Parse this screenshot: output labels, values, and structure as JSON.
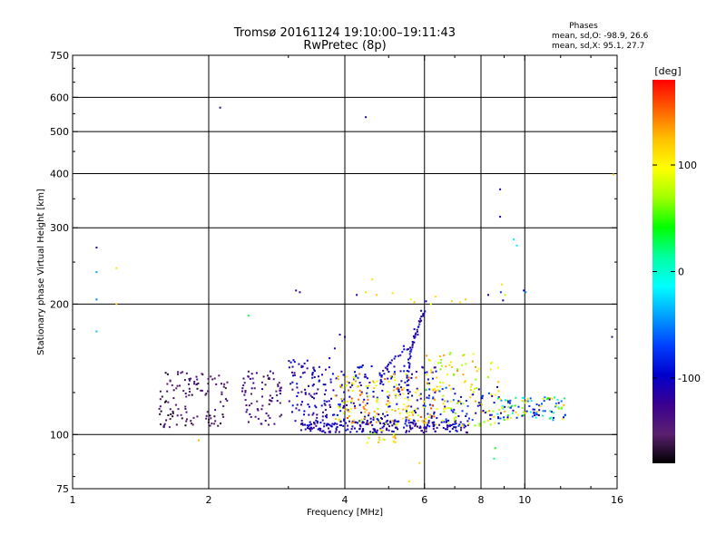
{
  "chart_data": {
    "type": "scatter",
    "title": "Tromsø 20161124 19:10:00–19:11:43",
    "subtitle": "RwPretec (8p)",
    "xlabel": "Frequency [MHz]",
    "ylabel": "Stationary phase Virtual Height [km]",
    "xscale": "log",
    "yscale": "log",
    "xlim": [
      1,
      16
    ],
    "ylim": [
      75,
      750
    ],
    "xticks": [
      "1",
      "2",
      "4",
      "6",
      "8",
      "10",
      "16"
    ],
    "yticks": [
      "75",
      "100",
      "200",
      "300",
      "400",
      "500",
      "600",
      "750"
    ],
    "xgrid": [
      2,
      4,
      6,
      8,
      10
    ],
    "ygrid": [
      100,
      200,
      300,
      400,
      500,
      600
    ],
    "phases_header": "Phases",
    "stats": [
      "mean, sd,O: -98.9, 26.6",
      "mean, sd,X: 95.1, 27.7"
    ],
    "colorbar": {
      "label": "[deg]",
      "range": [
        -180,
        180
      ],
      "ticks": [
        "100",
        "0",
        "-100"
      ],
      "tick_values": [
        100,
        0,
        -100
      ]
    },
    "points": [
      [
        1.13,
        270,
        -110
      ],
      [
        1.13,
        237,
        -40
      ],
      [
        1.13,
        205,
        -50
      ],
      [
        1.13,
        173,
        -30
      ],
      [
        1.25,
        242,
        110
      ],
      [
        1.25,
        200,
        120
      ],
      [
        2.12,
        568,
        -115
      ],
      [
        4.45,
        540,
        -120
      ],
      [
        2.45,
        188,
        30
      ],
      [
        3.12,
        215,
        -120
      ],
      [
        3.18,
        213,
        -115
      ],
      [
        4.25,
        210,
        -110
      ],
      [
        8.82,
        368,
        -110
      ],
      [
        8.82,
        318,
        -115
      ],
      [
        9.45,
        282,
        -10
      ],
      [
        9.6,
        273,
        -20
      ],
      [
        8.9,
        222,
        110
      ],
      [
        8.85,
        213,
        -70
      ],
      [
        9.05,
        210,
        80
      ],
      [
        9.95,
        215,
        -100
      ],
      [
        10.05,
        213,
        -40
      ],
      [
        8.3,
        210,
        -100
      ],
      [
        8.95,
        204,
        -95
      ],
      [
        15.6,
        168,
        -120
      ],
      [
        15.7,
        398,
        120
      ],
      [
        5.55,
        78,
        110
      ],
      [
        5.85,
        86,
        110
      ],
      [
        8.55,
        88,
        20
      ],
      [
        8.6,
        93,
        40
      ],
      [
        4.75,
        96,
        130
      ],
      [
        1.9,
        97,
        130
      ],
      [
        4.6,
        228,
        110
      ],
      [
        4.45,
        213,
        110
      ],
      [
        4.7,
        210,
        120
      ],
      [
        5.1,
        212,
        110
      ],
      [
        5.6,
        205,
        90
      ],
      [
        5.7,
        202,
        120
      ],
      [
        6.05,
        203,
        -110
      ],
      [
        6.2,
        200,
        90
      ],
      [
        6.9,
        203,
        110
      ],
      [
        7.2,
        202,
        110
      ],
      [
        7.4,
        205,
        120
      ],
      [
        6.35,
        208,
        110
      ],
      [
        5.9,
        193,
        -110
      ],
      [
        5.9,
        183,
        -110
      ],
      [
        5.7,
        175,
        -100
      ],
      [
        5.8,
        170,
        -110
      ],
      [
        5.4,
        160,
        -100
      ],
      [
        3.9,
        170,
        -110
      ],
      [
        4.0,
        168,
        -105
      ],
      [
        3.8,
        158,
        -110
      ],
      [
        3.7,
        150,
        -100
      ]
    ],
    "clusters": [
      {
        "fmin": 1.55,
        "fmax": 2.2,
        "hmin": 104,
        "hmax": 140,
        "pmin": -175,
        "pmax": -130,
        "n": 120
      },
      {
        "fmin": 2.35,
        "fmax": 2.9,
        "hmin": 104,
        "hmax": 140,
        "pmin": -165,
        "pmax": -115,
        "n": 75
      },
      {
        "fmin": 3.0,
        "fmax": 3.8,
        "hmin": 104,
        "hmax": 150,
        "pmin": -135,
        "pmax": -85,
        "n": 110
      },
      {
        "fmin": 3.2,
        "fmax": 7.5,
        "hmin": 101,
        "hmax": 108,
        "pmin": -130,
        "pmax": -90,
        "n": 230
      },
      {
        "fmin": 3.8,
        "fmax": 6.4,
        "hmin": 108,
        "hmax": 145,
        "pmin": -125,
        "pmax": -75,
        "n": 140
      },
      {
        "fmin": 3.8,
        "fmax": 6.4,
        "hmin": 106,
        "hmax": 138,
        "pmin": 75,
        "pmax": 160,
        "n": 150
      },
      {
        "fmin": 6.0,
        "fmax": 8.8,
        "hmin": 104,
        "hmax": 155,
        "pmin": 60,
        "pmax": 140,
        "n": 110
      },
      {
        "fmin": 6.0,
        "fmax": 8.8,
        "hmin": 104,
        "hmax": 130,
        "pmin": -120,
        "pmax": -60,
        "n": 60
      },
      {
        "fmin": 8.7,
        "fmax": 12.5,
        "hmin": 108,
        "hmax": 122,
        "pmin": -120,
        "pmax": 130,
        "n": 110
      },
      {
        "fmin": 4.4,
        "fmax": 5.3,
        "hmin": 95,
        "hmax": 106,
        "pmin": 60,
        "pmax": 140,
        "n": 20
      }
    ],
    "traces": [
      {
        "f0": 5.5,
        "f1": 6.0,
        "h0": 125,
        "h1": 192,
        "pmin": -125,
        "pmax": -85,
        "n": 45
      },
      {
        "f0": 4.8,
        "f1": 5.6,
        "h0": 130,
        "h1": 160,
        "pmin": -125,
        "pmax": -85,
        "n": 25
      }
    ],
    "colorbar_colors": [
      "#ff0000",
      "#ff6000",
      "#ffc000",
      "#ffff00",
      "#a0ff00",
      "#00ff00",
      "#00ffa0",
      "#00ffff",
      "#00a0ff",
      "#0040ff",
      "#0000cc",
      "#3b0090",
      "#5a2070",
      "#000000"
    ]
  }
}
